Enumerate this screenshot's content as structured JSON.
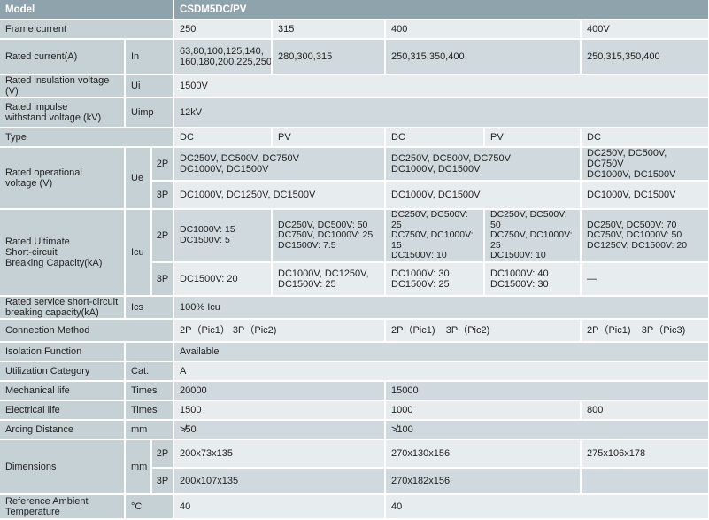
{
  "header": {
    "model_label": "Model",
    "model_value": "CSDM5DC/PV"
  },
  "frame_current": {
    "label": "Frame current",
    "values": [
      "250",
      "315",
      "400",
      "400V"
    ]
  },
  "rated_current": {
    "label": "Rated current(A)",
    "symbol": "In",
    "values": [
      "63,80,100,125,140,\n160,180,200,225,250",
      "280,300,315",
      "250,315,350,400",
      "250,315,350,400"
    ]
  },
  "insulation": {
    "label": "Rated insulation voltage (V)",
    "symbol": "Ui",
    "value": "1500V"
  },
  "impulse": {
    "label": "Rated impulse\nwithstand voltage (kV)",
    "symbol": "Uimp",
    "value": "12kV"
  },
  "type": {
    "label": "Type",
    "values": [
      "DC",
      "PV",
      "DC",
      "PV",
      "DC"
    ]
  },
  "operational": {
    "label": "Rated operational\nvoltage (V)",
    "symbol": "Ue",
    "p2": {
      "pole": "2P",
      "values": [
        "DC250V, DC500V, DC750V\nDC1000V, DC1500V",
        "DC250V, DC500V, DC750V\nDC1000V, DC1500V",
        "DC250V, DC500V, DC750V\nDC1000V, DC1500V"
      ]
    },
    "p3": {
      "pole": "3P",
      "values": [
        "DC1000V, DC1250V, DC1500V",
        "DC1000V, DC1500V",
        "DC1000V, DC1500V"
      ]
    }
  },
  "ultimate": {
    "label": "Rated Ultimate\nShort-circuit\nBreaking Capacity(kA)",
    "symbol": "Icu",
    "p2": {
      "pole": "2P",
      "values": [
        "DC1000V: 15\nDC1500V: 5",
        "DC250V, DC500V: 50\nDC750V, DC1000V: 25\nDC1500V: 7.5",
        "DC250V, DC500V: 25\nDC750V, DC1000V: 15\nDC1500V: 10",
        "DC250V, DC500V: 50\nDC750V, DC1000V: 25\nDC1500V: 10",
        "DC250V, DC500V: 70\nDC750V, DC1000V: 50\nDC1250V, DC1500V: 20"
      ]
    },
    "p3": {
      "pole": "3P",
      "values": [
        "DC1500V: 20",
        "DC1000V, DC1250V,\nDC1500V: 25",
        "DC1000V: 30\nDC1500V: 25",
        "DC1000V: 40\nDC1500V: 30",
        "—"
      ]
    }
  },
  "service": {
    "label": "Rated service short-circuit\nbreaking capacity(kA)",
    "symbol": "Ics",
    "value": "100% Icu"
  },
  "connection": {
    "label": "Connection Method",
    "values": [
      "2P（Pic1） 3P（Pic2)",
      "2P（Pic1)    3P（Pic2)",
      "2P（Pic1)    3P（Pic3)"
    ]
  },
  "isolation": {
    "label": "Isolation Function",
    "value": "Available"
  },
  "utilization": {
    "label": "Utilization Category",
    "symbol": "Cat.",
    "value": "A"
  },
  "mechanical": {
    "label": "Mechanical life",
    "symbol": "Times",
    "values": [
      "20000",
      "15000"
    ]
  },
  "electrical": {
    "label": "Electrical life",
    "symbol": "Times",
    "values": [
      "1500",
      "1000",
      "800"
    ]
  },
  "arcing": {
    "label": "Arcing Distance",
    "symbol": "mm",
    "values": [
      "≯50",
      "≯100"
    ]
  },
  "dimensions": {
    "label": "Dimensions",
    "symbol": "mm",
    "p2": {
      "pole": "2P",
      "values": [
        "200x73x135",
        "270x130x156",
        "275x106x178"
      ]
    },
    "p3": {
      "pole": "3P",
      "values": [
        "200x107x135",
        "270x182x156"
      ]
    }
  },
  "ambient": {
    "label": "Reference Ambient\nTemperature",
    "symbol": "°C",
    "values": [
      "40",
      "40"
    ]
  }
}
